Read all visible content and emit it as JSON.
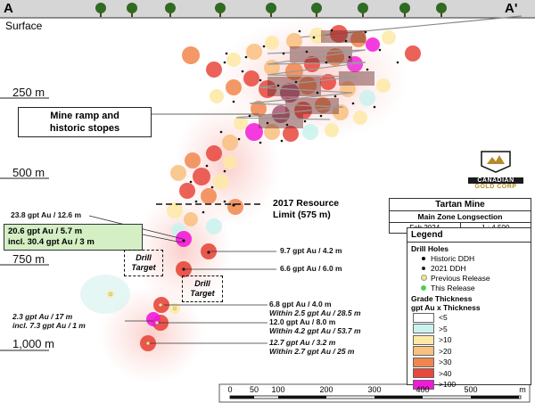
{
  "section": {
    "start_label": "A",
    "end_label": "A'",
    "surface_label": "Surface"
  },
  "depth_labels": [
    "250 m",
    "500 m",
    "750 m",
    "1,000 m"
  ],
  "callouts": {
    "mine_ramp": [
      "Mine ramp and",
      "historic stopes"
    ],
    "resource_limit": [
      "2017 Resource",
      "Limit (575 m)"
    ]
  },
  "intercepts": {
    "i1": "23.8 gpt Au / 12.6 m",
    "highlight_1": "20.6 gpt Au / 5.7 m",
    "highlight_2": "incl. 30.4 gpt Au / 3 m",
    "i2": "9.7 gpt Au / 4.2 m",
    "i3": "6.6 gpt Au / 6.0 m",
    "i4a": "6.8 gpt Au / 4.0 m",
    "i4b": "Within 2.5 gpt Au / 28.5 m",
    "i5a": "12.0 gpt Au / 8.0 m",
    "i5b": "Within 4.2 gpt Au / 53.7 m",
    "i6a": "2.3 gpt Au / 17 m",
    "i6b": "incl. 7.3 gpt Au / 1 m",
    "i7a": "12.7 gpt Au / 3.2 m",
    "i7b": "Within 2.7 gpt Au / 25 m"
  },
  "targets": {
    "t1": [
      "Drill",
      "Target"
    ],
    "t2": [
      "Drill",
      "Target"
    ]
  },
  "logo": {
    "line1": "CANADIAN",
    "line2": "GOLD CORP"
  },
  "title_block": {
    "title": "Tartan Mine",
    "subtitle": "Main Zone Longsection",
    "date": "Feb 2024",
    "scale": "1 : 4,500"
  },
  "legend": {
    "title": "Legend",
    "drill_holes_heading": "Drill Holes",
    "drill_holes": [
      {
        "label": "Historic DDH",
        "icon": "black-dot-icon"
      },
      {
        "label": "2021 DDH",
        "icon": "black-dot-icon"
      },
      {
        "label": "Previous Release",
        "icon": "yellow-dot-icon"
      },
      {
        "label": "This Release",
        "icon": "green-dot-icon"
      }
    ],
    "grade_heading_1": "Grade Thickness",
    "grade_heading_2": "gpt Au x Thickness",
    "grade_classes": [
      {
        "label": "<5",
        "color": "#ffffff"
      },
      {
        "label": ">5",
        "color": "#c9f2ee"
      },
      {
        "label": ">10",
        "color": "#fde9a6"
      },
      {
        "label": ">20",
        "color": "#f9c07e"
      },
      {
        "label": ">30",
        "color": "#f1864c"
      },
      {
        "label": ">40",
        "color": "#e8473c"
      },
      {
        "label": ">100",
        "color": "#f21ad9"
      }
    ]
  },
  "scale_bar": {
    "ticks": [
      "0",
      "50",
      "100",
      "200",
      "300",
      "400",
      "500"
    ],
    "unit": "m"
  }
}
